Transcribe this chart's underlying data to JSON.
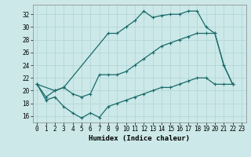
{
  "xlabel": "Humidex (Indice chaleur)",
  "bg_color": "#cce8e8",
  "line_color": "#1a6b6b",
  "xlim": [
    -0.5,
    23.5
  ],
  "ylim": [
    15.0,
    33.5
  ],
  "xticks": [
    0,
    1,
    2,
    3,
    4,
    5,
    6,
    7,
    8,
    9,
    10,
    11,
    12,
    13,
    14,
    15,
    16,
    17,
    18,
    19,
    20,
    21,
    22,
    23
  ],
  "yticks": [
    16,
    18,
    20,
    22,
    24,
    26,
    28,
    30,
    32
  ],
  "grid_color": "#aed4d4",
  "line_top_x": [
    0,
    2,
    3,
    8,
    9,
    10,
    11,
    12,
    13,
    14,
    15,
    16,
    17,
    18,
    19,
    20,
    21,
    22
  ],
  "line_top_y": [
    21,
    20,
    20.5,
    29,
    29,
    30,
    31,
    32.5,
    31.5,
    31.8,
    32,
    32,
    32.5,
    32.5,
    30,
    29,
    24,
    21
  ],
  "line_mid_x": [
    0,
    1,
    2,
    3,
    4,
    5,
    6,
    7,
    8,
    9,
    10,
    11,
    12,
    13,
    14,
    15,
    16,
    17,
    18,
    19,
    20,
    21,
    22
  ],
  "line_mid_y": [
    21,
    19,
    20,
    20.5,
    19.5,
    19,
    19.5,
    22.5,
    22.5,
    22.5,
    23,
    24,
    25,
    26,
    27,
    27.5,
    28,
    28.5,
    29,
    29,
    29,
    24,
    21
  ],
  "line_bot_x": [
    0,
    1,
    2,
    3,
    4,
    5,
    6,
    7,
    8,
    9,
    10,
    11,
    12,
    13,
    14,
    15,
    16,
    17,
    18,
    19,
    20,
    21,
    22
  ],
  "line_bot_y": [
    21,
    18.5,
    19,
    17.5,
    16.5,
    15.7,
    16.5,
    15.8,
    17.5,
    18,
    18.5,
    19,
    19.5,
    20,
    20.5,
    20.5,
    21,
    21.5,
    22,
    22,
    21,
    21,
    21
  ]
}
